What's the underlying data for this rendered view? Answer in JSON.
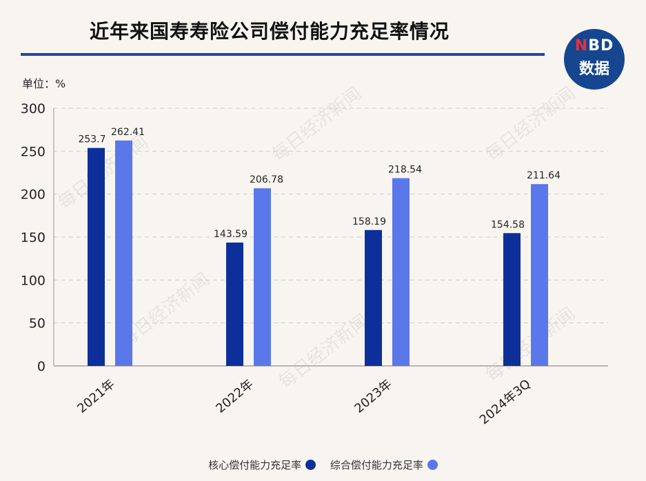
{
  "header": {
    "title": "近年来国寿寿险公司偿付能力充足率情况",
    "logo_line1_n": "N",
    "logo_line1_rest": "BD",
    "logo_line2": "数据",
    "unit_label": "单位：%"
  },
  "watermark_text": "每日经济新闻",
  "colors": {
    "core": "#0d2f9a",
    "comprehensive": "#5a78ea",
    "title_rule": "#1e4a9b",
    "logo_bg": "#15468f",
    "logo_accent": "#e8303a"
  },
  "chart_data": {
    "type": "bar",
    "title": "近年来国寿寿险公司偿付能力充足率情况",
    "ylabel": "单位：%",
    "categories": [
      "2021年",
      "2022年",
      "2023年",
      "2024年3Q"
    ],
    "series": [
      {
        "name": "核心偿付能力充足率",
        "values": [
          253.7,
          143.59,
          158.19,
          154.58
        ],
        "labels": [
          "253.7",
          "143.59",
          "158.19",
          "154.58"
        ]
      },
      {
        "name": "综合偿付能力充足率",
        "values": [
          262.41,
          206.78,
          218.54,
          211.64
        ],
        "labels": [
          "262.41",
          "206.78",
          "218.54",
          "211.64"
        ]
      }
    ],
    "ylim": [
      0,
      300
    ],
    "yticks": [
      0,
      50,
      100,
      150,
      200,
      250,
      300
    ],
    "grid": true,
    "legend_position": "bottom-center"
  }
}
